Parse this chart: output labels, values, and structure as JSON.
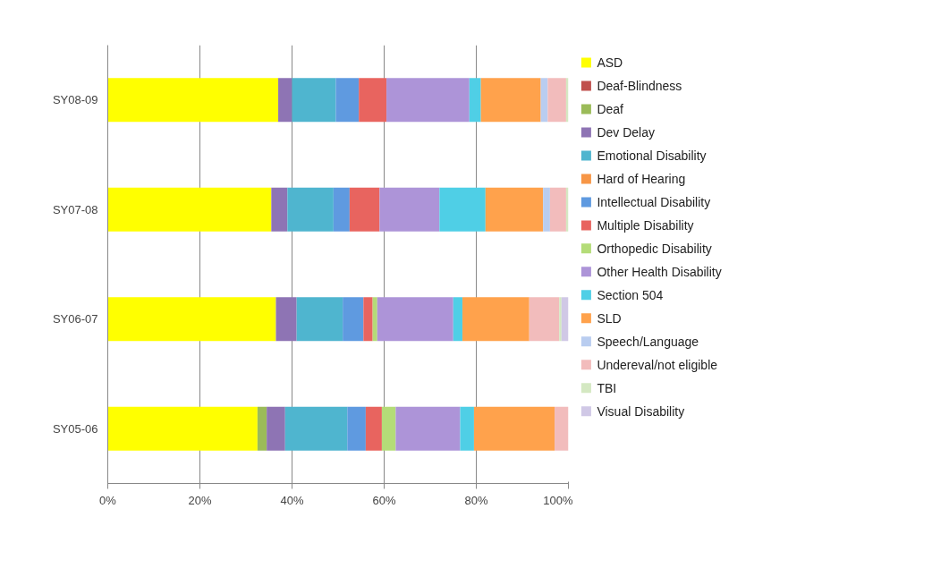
{
  "chart_data": {
    "type": "bar",
    "orientation": "horizontal",
    "stacked": true,
    "categories": [
      "SY08-09",
      "SY07-08",
      "SY06-07",
      "SY05-06"
    ],
    "xlim": [
      0,
      100
    ],
    "xticks": [
      {
        "value": 0,
        "label": "0%"
      },
      {
        "value": 20,
        "label": "20%"
      },
      {
        "value": 40,
        "label": "40%"
      },
      {
        "value": 60,
        "label": "60%"
      },
      {
        "value": 80,
        "label": "80%"
      },
      {
        "value": 100,
        "label": "100%"
      }
    ],
    "grid": "x",
    "legend": "right",
    "series": [
      {
        "name": "ASD",
        "color": "#ffff00",
        "values": [
          37,
          35.5,
          36.5,
          32.5
        ]
      },
      {
        "name": "Deaf-Blindness",
        "color": "#c0504d",
        "values": [
          0,
          0,
          0,
          0
        ]
      },
      {
        "name": "Deaf",
        "color": "#9bbb59",
        "values": [
          0,
          0,
          0,
          2
        ]
      },
      {
        "name": "Dev Delay",
        "color": "#8e74b4",
        "values": [
          3,
          3.5,
          4.5,
          4
        ]
      },
      {
        "name": "Emotional Disability",
        "color": "#4fb5cf",
        "values": [
          9.5,
          10,
          10,
          13.5
        ]
      },
      {
        "name": "Hard of Hearing",
        "color": "#f79646",
        "values": [
          0,
          0,
          0,
          0
        ]
      },
      {
        "name": "Intellectual Disability",
        "color": "#5f9ae0",
        "values": [
          5,
          3.5,
          4.5,
          4
        ]
      },
      {
        "name": "Multiple Disability",
        "color": "#e8645f",
        "values": [
          6,
          6.5,
          2,
          3.5
        ]
      },
      {
        "name": "Orthopedic Disability",
        "color": "#b4dc78",
        "values": [
          0,
          0,
          1,
          3
        ]
      },
      {
        "name": "Other Health Disability",
        "color": "#ad94d8",
        "values": [
          18,
          13,
          16.5,
          14
        ]
      },
      {
        "name": "Section 504",
        "color": "#4fcfe6",
        "values": [
          2.5,
          10,
          2,
          3
        ]
      },
      {
        "name": "SLD",
        "color": "#ffa24c",
        "values": [
          13,
          12.5,
          14.5,
          17.5
        ]
      },
      {
        "name": "Speech/Language",
        "color": "#b9cdf0",
        "values": [
          1.5,
          1.5,
          0,
          0
        ]
      },
      {
        "name": "Undereval/not eligible",
        "color": "#f2bcbc",
        "values": [
          4,
          3.5,
          6.5,
          3
        ]
      },
      {
        "name": "TBI",
        "color": "#d4e8c2",
        "values": [
          0.5,
          0.5,
          0.5,
          0
        ]
      },
      {
        "name": "Visual Disability",
        "color": "#d0c8e6",
        "values": [
          0,
          0,
          1.5,
          0
        ]
      }
    ]
  }
}
